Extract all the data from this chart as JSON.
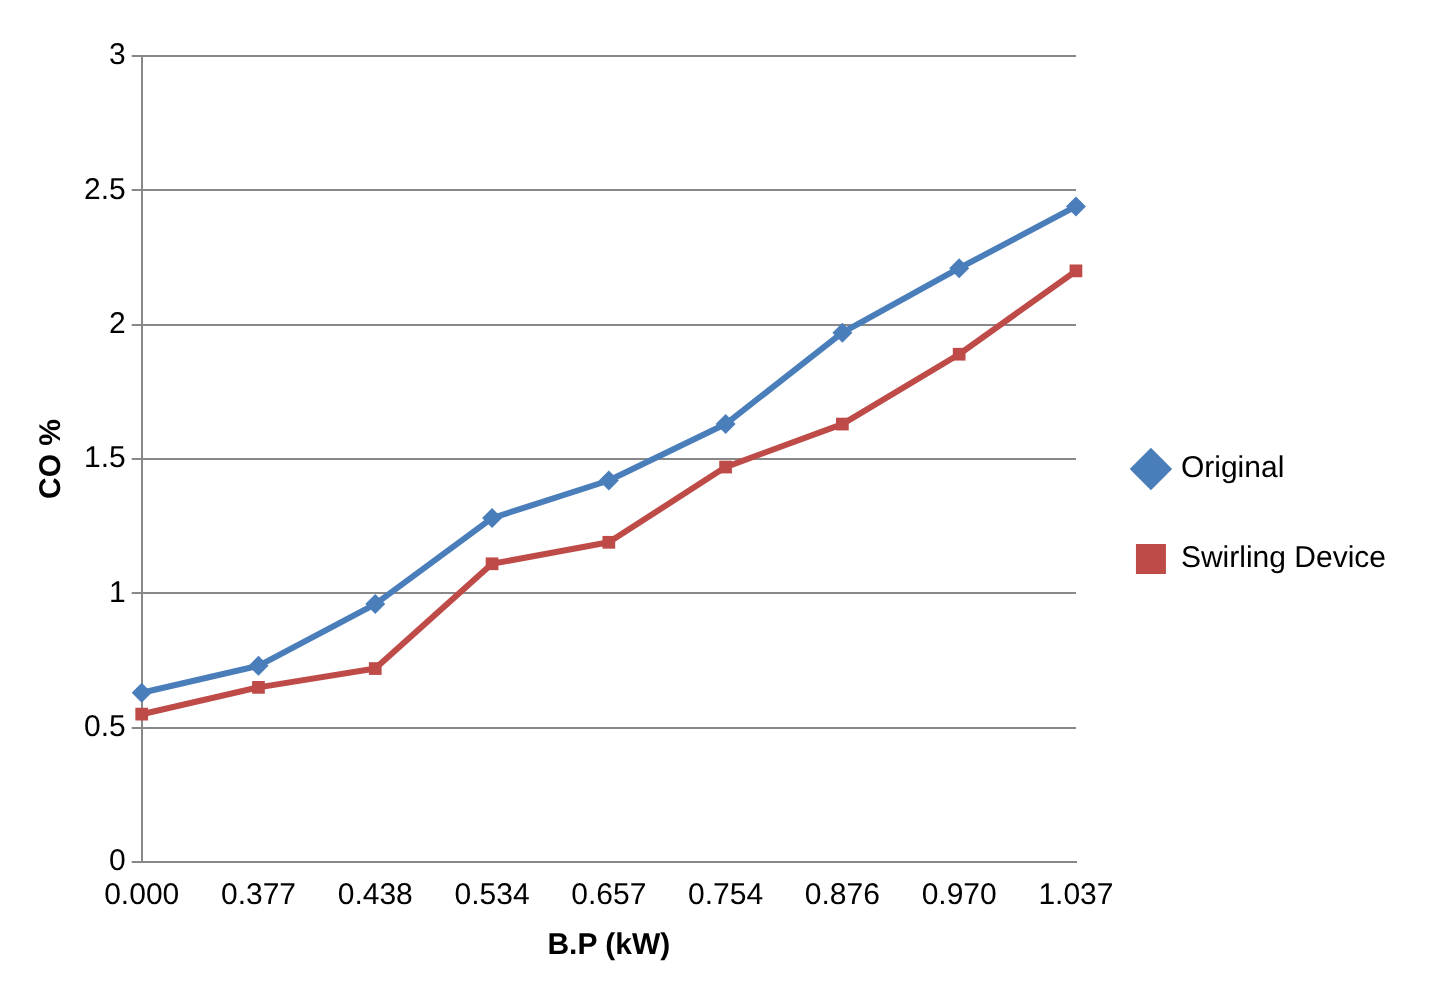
{
  "chart_data": {
    "type": "line",
    "xlabel": "B.P (kW)",
    "ylabel": "CO %",
    "categories": [
      "0.000",
      "0.377",
      "0.438",
      "0.534",
      "0.657",
      "0.754",
      "0.876",
      "0.970",
      "1.037"
    ],
    "series": [
      {
        "name": "Original",
        "color": "#4a7ebb",
        "marker": "diamond",
        "values": [
          0.63,
          0.73,
          0.96,
          1.28,
          1.42,
          1.63,
          1.97,
          2.21,
          2.44
        ]
      },
      {
        "name": "Swirling Device",
        "color": "#be4b48",
        "marker": "square",
        "values": [
          0.55,
          0.65,
          0.72,
          1.11,
          1.19,
          1.47,
          1.63,
          1.89,
          2.2
        ]
      }
    ],
    "ylim": [
      0,
      3
    ],
    "yticks": [
      0,
      0.5,
      1,
      1.5,
      2,
      2.5,
      3
    ],
    "grid": "y",
    "legend": "right",
    "line_style": "solid"
  }
}
